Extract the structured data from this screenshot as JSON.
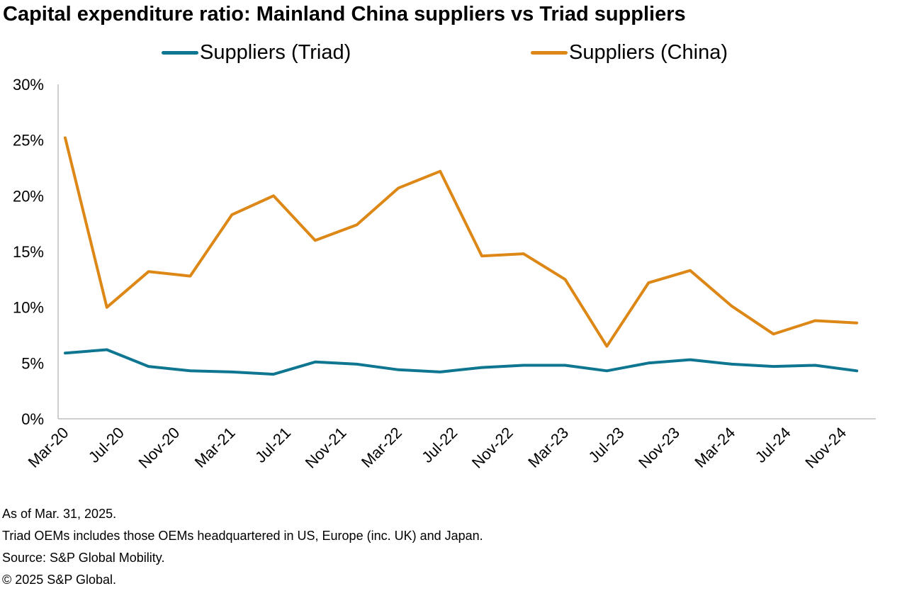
{
  "title": "Capital expenditure ratio: Mainland China suppliers vs Triad suppliers",
  "colors": {
    "triad": "#0e7690",
    "china": "#dc8716",
    "axis": "#bfbfbf"
  },
  "chart_data": {
    "type": "line",
    "title": "Capital expenditure ratio: Mainland China suppliers vs Triad suppliers",
    "xlabel": "",
    "ylabel": "",
    "ylim": [
      0,
      30
    ],
    "yticks": [
      "0%",
      "5%",
      "10%",
      "15%",
      "20%",
      "25%",
      "30%"
    ],
    "grid": false,
    "legend": "top",
    "categories": [
      "Mar-20",
      "Jul-20",
      "Nov-20",
      "Mar-21",
      "Jul-21",
      "Nov-21",
      "Mar-22",
      "Jul-22",
      "Nov-22",
      "Mar-23",
      "Jul-23",
      "Nov-23",
      "Mar-24",
      "Jul-24",
      "Nov-24"
    ],
    "x": [
      "Mar-20",
      "Jun-20",
      "Sep-20",
      "Dec-20",
      "Mar-21",
      "Jun-21",
      "Sep-21",
      "Dec-21",
      "Mar-22",
      "Jun-22",
      "Sep-22",
      "Dec-22",
      "Mar-23",
      "Jun-23",
      "Sep-23",
      "Dec-23",
      "Mar-24",
      "Jun-24",
      "Sep-24",
      "Dec-24"
    ],
    "series": [
      {
        "name": "Suppliers (Triad)",
        "values": [
          5.9,
          6.2,
          4.7,
          4.3,
          4.2,
          4.0,
          5.1,
          4.9,
          4.4,
          4.2,
          4.6,
          4.8,
          4.8,
          4.3,
          5.0,
          5.3,
          4.9,
          4.7,
          4.8,
          4.3
        ]
      },
      {
        "name": "Suppliers (China)",
        "values": [
          25.2,
          10.0,
          13.2,
          12.8,
          18.3,
          20.0,
          16.0,
          17.4,
          20.7,
          22.2,
          14.6,
          14.8,
          12.5,
          6.5,
          12.2,
          13.3,
          10.1,
          7.6,
          8.8,
          8.6
        ]
      }
    ]
  },
  "notes": [
    "As of Mar. 31, 2025.",
    "Triad OEMs includes those OEMs headquartered in US, Europe (inc. UK) and Japan.",
    "Source: S&P Global Mobility.",
    "© 2025 S&P Global."
  ]
}
